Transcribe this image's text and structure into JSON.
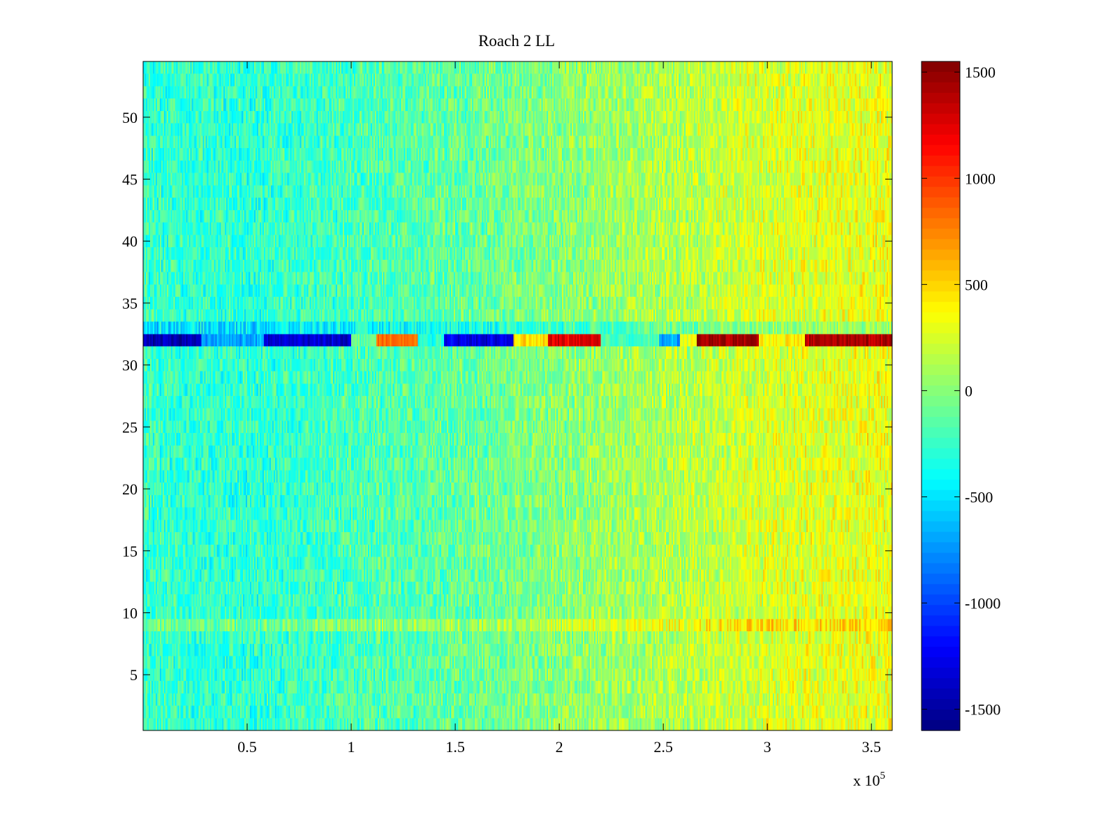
{
  "chart_data": {
    "type": "heatmap",
    "title": "Roach 2 LL",
    "xlim": [
      0,
      360000
    ],
    "ylim": [
      0.5,
      54.5
    ],
    "x_ticks": [
      {
        "value": 50000,
        "label": "0.5"
      },
      {
        "value": 100000,
        "label": "1"
      },
      {
        "value": 150000,
        "label": "1.5"
      },
      {
        "value": 200000,
        "label": "2"
      },
      {
        "value": 250000,
        "label": "2.5"
      },
      {
        "value": 300000,
        "label": "3"
      },
      {
        "value": 350000,
        "label": "3.5"
      }
    ],
    "x_exponent_label": "x 10",
    "x_exponent_power": "5",
    "y_ticks": [
      {
        "value": 5,
        "label": "5"
      },
      {
        "value": 10,
        "label": "10"
      },
      {
        "value": 15,
        "label": "15"
      },
      {
        "value": 20,
        "label": "20"
      },
      {
        "value": 25,
        "label": "25"
      },
      {
        "value": 30,
        "label": "30"
      },
      {
        "value": 35,
        "label": "35"
      },
      {
        "value": 40,
        "label": "40"
      },
      {
        "value": 45,
        "label": "45"
      },
      {
        "value": 50,
        "label": "50"
      }
    ],
    "colorbar": {
      "colormap": "jet",
      "range": [
        -1600,
        1550
      ],
      "ticks": [
        {
          "value": 1500,
          "label": "1500"
        },
        {
          "value": 1000,
          "label": "1000"
        },
        {
          "value": 500,
          "label": "500"
        },
        {
          "value": 0,
          "label": "0"
        },
        {
          "value": -500,
          "label": "-500"
        },
        {
          "value": -1000,
          "label": "-1000"
        },
        {
          "value": -1500,
          "label": "-1500"
        }
      ]
    },
    "rows": 54,
    "background_trend": [
      {
        "x": 0,
        "value": -250
      },
      {
        "x": 50000,
        "value": -280
      },
      {
        "x": 100000,
        "value": -200
      },
      {
        "x": 150000,
        "value": -120
      },
      {
        "x": 200000,
        "value": 0
      },
      {
        "x": 250000,
        "value": 120
      },
      {
        "x": 300000,
        "value": 250
      },
      {
        "x": 360000,
        "value": 320
      }
    ],
    "noise_amplitude": 220,
    "highlight_rows": [
      {
        "row": 32,
        "segments": [
          {
            "x_start": 0,
            "x_end": 28000,
            "value": -1450
          },
          {
            "x_start": 28000,
            "x_end": 58000,
            "value": -700
          },
          {
            "x_start": 58000,
            "x_end": 100000,
            "value": -1350
          },
          {
            "x_start": 100000,
            "x_end": 112000,
            "value": -100
          },
          {
            "x_start": 112000,
            "x_end": 132000,
            "value": 800
          },
          {
            "x_start": 132000,
            "x_end": 145000,
            "value": -300
          },
          {
            "x_start": 145000,
            "x_end": 178000,
            "value": -1300
          },
          {
            "x_start": 178000,
            "x_end": 195000,
            "value": 450
          },
          {
            "x_start": 195000,
            "x_end": 220000,
            "value": 1250
          },
          {
            "x_start": 220000,
            "x_end": 248000,
            "value": -200
          },
          {
            "x_start": 248000,
            "x_end": 258000,
            "value": -700
          },
          {
            "x_start": 258000,
            "x_end": 266000,
            "value": 300
          },
          {
            "x_start": 266000,
            "x_end": 296000,
            "value": 1450
          },
          {
            "x_start": 296000,
            "x_end": 318000,
            "value": 400
          },
          {
            "x_start": 318000,
            "x_end": 360000,
            "value": 1400
          }
        ]
      },
      {
        "row": 33,
        "value": -450
      },
      {
        "row": 9,
        "value": 380
      }
    ]
  }
}
